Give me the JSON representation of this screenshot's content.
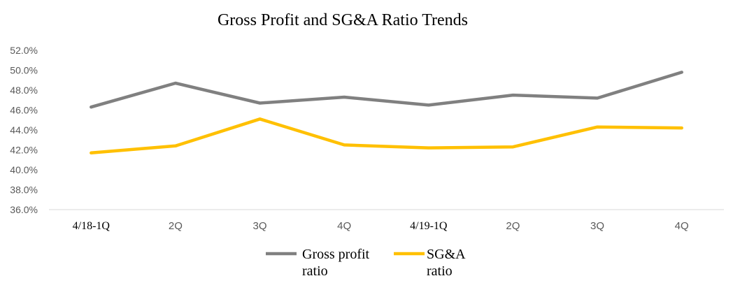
{
  "chart_data": {
    "type": "line",
    "title": "Gross Profit and SG&A Ratio Trends",
    "categories": [
      "4/18-1Q",
      "2Q",
      "3Q",
      "4Q",
      "4/19-1Q",
      "2Q",
      "3Q",
      "4Q"
    ],
    "category_styles": [
      "serif",
      "sans",
      "sans",
      "sans",
      "serif",
      "sans",
      "sans",
      "sans"
    ],
    "ylim": [
      36.0,
      52.0
    ],
    "yticks": [
      "36.0%",
      "38.0%",
      "40.0%",
      "42.0%",
      "44.0%",
      "46.0%",
      "48.0%",
      "50.0%",
      "52.0%"
    ],
    "grid": false,
    "legend_position": "bottom",
    "series": [
      {
        "name": "Gross profit ratio",
        "legend_lines": [
          "Gross profit",
          "ratio"
        ],
        "color": "#808080",
        "values": [
          46.3,
          48.7,
          46.7,
          47.3,
          46.5,
          47.5,
          47.2,
          49.8
        ]
      },
      {
        "name": "SG&A ratio",
        "legend_lines": [
          "SG&A",
          "ratio"
        ],
        "color": "#FFC000",
        "values": [
          41.7,
          42.4,
          45.1,
          42.5,
          42.2,
          42.3,
          44.3,
          44.2
        ]
      }
    ]
  }
}
